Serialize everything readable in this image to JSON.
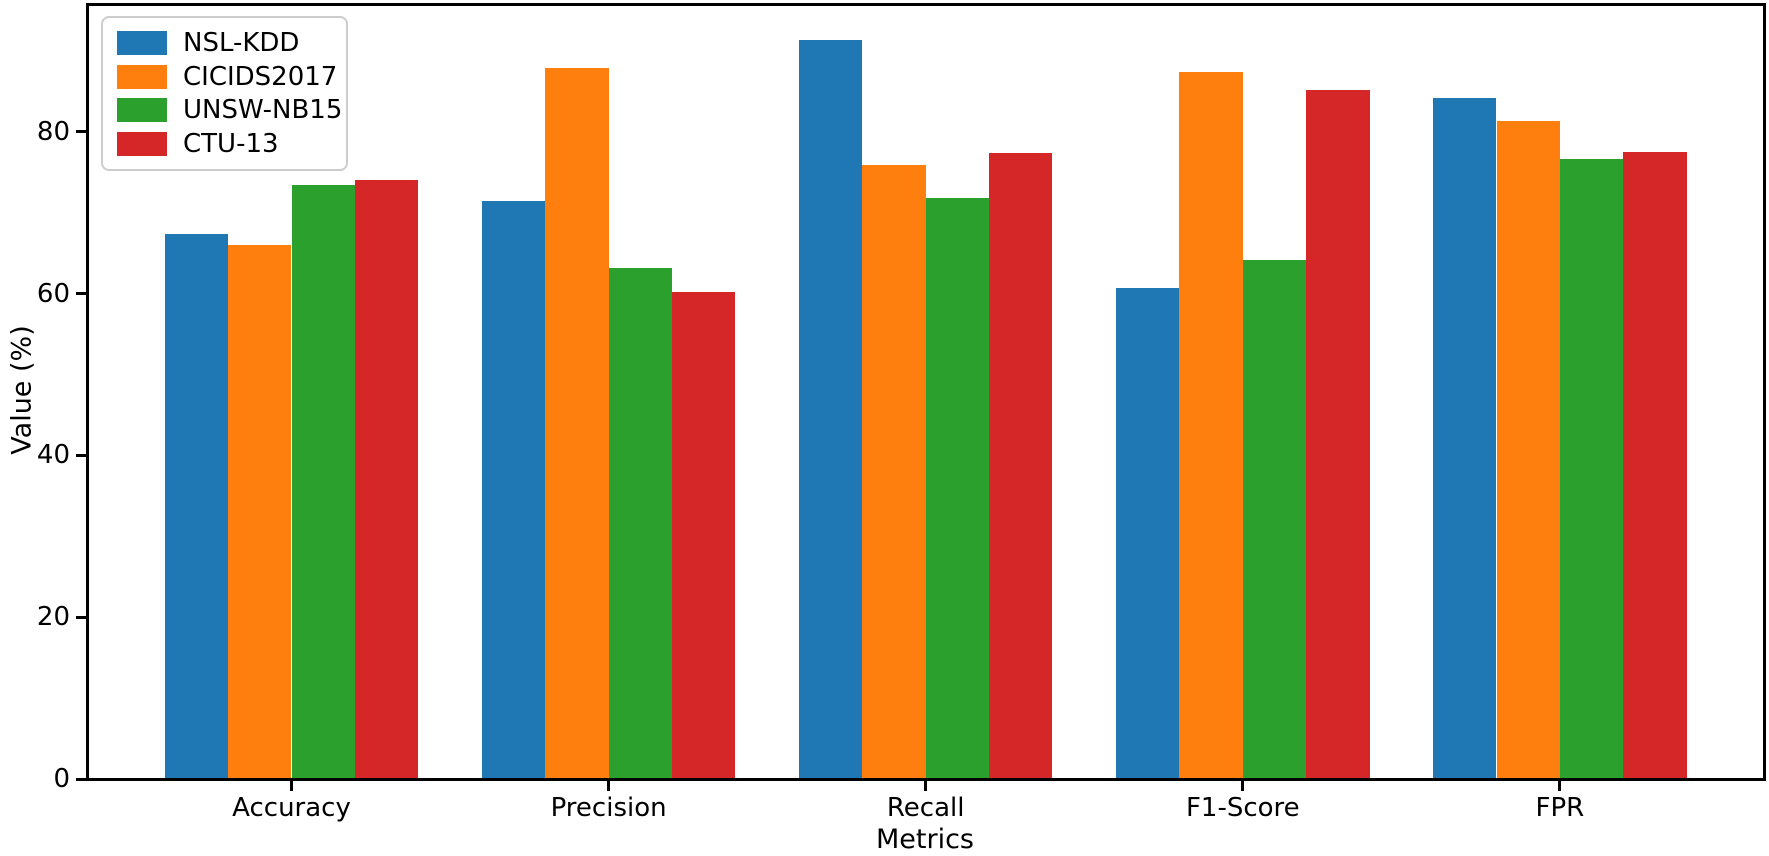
{
  "chart_data": {
    "type": "bar",
    "title": "",
    "xlabel": "Metrics",
    "ylabel": "Value (%)",
    "categories": [
      "Accuracy",
      "Precision",
      "Recall",
      "F1-Score",
      "FPR"
    ],
    "series": [
      {
        "name": "NSL-KDD",
        "color": "#1f77b4",
        "values": [
          67.2,
          71.3,
          91.2,
          60.6,
          84.1
        ]
      },
      {
        "name": "CICIDS2017",
        "color": "#ff7f0e",
        "values": [
          65.9,
          87.8,
          75.8,
          87.3,
          81.2
        ]
      },
      {
        "name": "UNSW-NB15",
        "color": "#2ca02c",
        "values": [
          73.3,
          63.1,
          71.7,
          64.0,
          76.5
        ]
      },
      {
        "name": "CTU-13",
        "color": "#d62728",
        "values": [
          73.9,
          60.1,
          77.3,
          85.1,
          77.4
        ]
      }
    ],
    "yticks": [
      0,
      20,
      40,
      60,
      80
    ],
    "ylim": [
      0,
      95.8
    ],
    "grid": false,
    "legend_position": "upper left",
    "bar_group_width": 0.8,
    "bars_per_group": 4
  }
}
